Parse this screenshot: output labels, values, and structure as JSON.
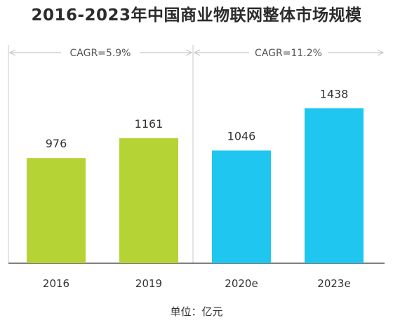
{
  "chart_data": {
    "type": "bar",
    "title": "2016-2023年中国商业物联网整体市场规模",
    "categories": [
      "2016",
      "2019",
      "2020e",
      "2023e"
    ],
    "values": [
      976,
      1161,
      1046,
      1438
    ],
    "colors": [
      "#b5d334",
      "#b5d334",
      "#1fc7f0",
      "#1fc7f0"
    ],
    "ylim": [
      0,
      1600
    ],
    "grid": false,
    "annotations": [
      {
        "text": "CAGR=5.9%",
        "from": "2016",
        "to": "2019"
      },
      {
        "text": "CAGR=11.2%",
        "from": "2020e",
        "to": "2023e"
      }
    ],
    "unit": "单位：亿元"
  }
}
